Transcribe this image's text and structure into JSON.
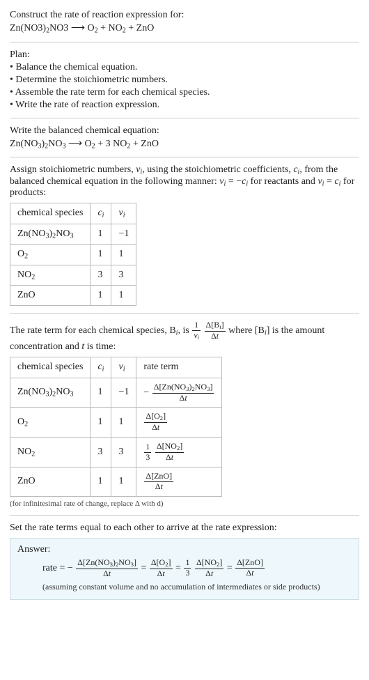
{
  "header": {
    "prompt": "Construct the rate of reaction expression for:",
    "equation_html": "Zn(NO3)<sub>2</sub>NO3 ⟶ O<sub>2</sub> + NO<sub>2</sub> + ZnO"
  },
  "plan": {
    "title": "Plan:",
    "items": [
      "• Balance the chemical equation.",
      "• Determine the stoichiometric numbers.",
      "• Assemble the rate term for each chemical species.",
      "• Write the rate of reaction expression."
    ]
  },
  "balanced": {
    "title": "Write the balanced chemical equation:",
    "equation_html": "Zn(NO<sub>3</sub>)<sub>2</sub>NO<sub>3</sub> ⟶ O<sub>2</sub> + 3 NO<sub>2</sub> + ZnO"
  },
  "stoich": {
    "intro_html": "Assign stoichiometric numbers, <span class='ital'>ν<sub>i</sub></span>, using the stoichiometric coefficients, <span class='ital'>c<sub>i</sub></span>, from the balanced chemical equation in the following manner: <span class='ital'>ν<sub>i</sub></span> = −<span class='ital'>c<sub>i</sub></span> for reactants and <span class='ital'>ν<sub>i</sub></span> = <span class='ital'>c<sub>i</sub></span> for products:",
    "headers": {
      "species": "chemical species",
      "ci_html": "<span class='ital'>c<sub>i</sub></span>",
      "vi_html": "<span class='ital'>ν<sub>i</sub></span>"
    },
    "rows": [
      {
        "sp_html": "Zn(NO<sub>3</sub>)<sub>2</sub>NO<sub>3</sub>",
        "c": "1",
        "v": "−1"
      },
      {
        "sp_html": "O<sub>2</sub>",
        "c": "1",
        "v": "1"
      },
      {
        "sp_html": "NO<sub>2</sub>",
        "c": "3",
        "v": "3"
      },
      {
        "sp_html": "ZnO",
        "c": "1",
        "v": "1"
      }
    ]
  },
  "rateterm": {
    "intro_pre": "The rate term for each chemical species, B",
    "intro_mid": ", is ",
    "intro_post_html": " where [B<sub><span class='ital'>i</span></sub>] is the amount concentration and <span class='ital'>t</span> is time:",
    "frac1": {
      "num_html": "1",
      "den_html": "<span class='ital'>ν<sub>i</sub></span>"
    },
    "frac2": {
      "num_html": "Δ[B<sub><span class='ital'>i</span></sub>]",
      "den_html": "Δ<span class='ital'>t</span>"
    },
    "headers": {
      "species": "chemical species",
      "ci_html": "<span class='ital'>c<sub>i</sub></span>",
      "vi_html": "<span class='ital'>ν<sub>i</sub></span>",
      "rate": "rate term"
    },
    "rows": [
      {
        "sp_html": "Zn(NO<sub>3</sub>)<sub>2</sub>NO<sub>3</sub>",
        "c": "1",
        "v": "−1",
        "rate_html": "− <span class='frac'><span class='num'>Δ[Zn(NO<sub>3</sub>)<sub>2</sub>NO<sub>3</sub>]</span><span class='den'>Δ<span class='ital'>t</span></span></span>"
      },
      {
        "sp_html": "O<sub>2</sub>",
        "c": "1",
        "v": "1",
        "rate_html": "<span class='frac'><span class='num'>Δ[O<sub>2</sub>]</span><span class='den'>Δ<span class='ital'>t</span></span></span>"
      },
      {
        "sp_html": "NO<sub>2</sub>",
        "c": "3",
        "v": "3",
        "rate_html": "<span class='frac'><span class='num'>1</span><span class='den'>3</span></span>&nbsp;<span class='frac'><span class='num'>Δ[NO<sub>2</sub>]</span><span class='den'>Δ<span class='ital'>t</span></span></span>"
      },
      {
        "sp_html": "ZnO",
        "c": "1",
        "v": "1",
        "rate_html": "<span class='frac'><span class='num'>Δ[ZnO]</span><span class='den'>Δ<span class='ital'>t</span></span></span>"
      }
    ],
    "note": "(for infinitesimal rate of change, replace Δ with d)"
  },
  "final": {
    "title": "Set the rate terms equal to each other to arrive at the rate expression:"
  },
  "answer": {
    "title": "Answer:",
    "body_html": "rate = − <span class='frac'><span class='num'>Δ[Zn(NO<sub>3</sub>)<sub>2</sub>NO<sub>3</sub>]</span><span class='den'>Δ<span class='ital'>t</span></span></span> = <span class='frac'><span class='num'>Δ[O<sub>2</sub>]</span><span class='den'>Δ<span class='ital'>t</span></span></span> = <span class='frac'><span class='num'>1</span><span class='den'>3</span></span> <span class='frac'><span class='num'>Δ[NO<sub>2</sub>]</span><span class='den'>Δ<span class='ital'>t</span></span></span> = <span class='frac'><span class='num'>Δ[ZnO]</span><span class='den'>Δ<span class='ital'>t</span></span></span>",
    "note": "(assuming constant volume and no accumulation of intermediates or side products)"
  }
}
